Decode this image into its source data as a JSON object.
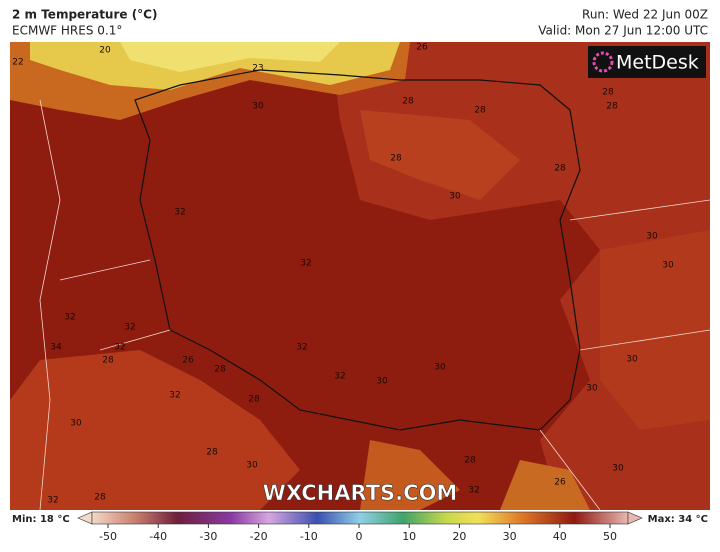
{
  "header": {
    "title": "2 m Temperature (°C)",
    "model": "ECMWF HRES 0.1°",
    "run": "Run: Wed 22 Jun 00Z",
    "valid": "Valid: Mon 27 Jun 12:00 UTC"
  },
  "logo": "MetDesk",
  "watermark": "WXCHARTS.COM",
  "legend": {
    "min": "Min: 18 °C",
    "max": "Max: 34 °C",
    "ticks": [
      -50,
      -40,
      -30,
      -20,
      -10,
      0,
      10,
      20,
      30,
      40,
      50
    ]
  },
  "map": {
    "contour_labels": [
      20,
      22,
      26,
      23,
      28,
      28,
      30,
      28,
      28,
      28,
      28,
      30,
      32,
      30,
      30,
      32,
      32,
      32,
      34,
      32,
      32,
      28,
      26,
      28,
      32,
      30,
      30,
      30,
      30,
      32,
      30,
      28,
      28,
      30,
      30,
      28,
      32,
      26,
      28,
      32
    ]
  }
}
